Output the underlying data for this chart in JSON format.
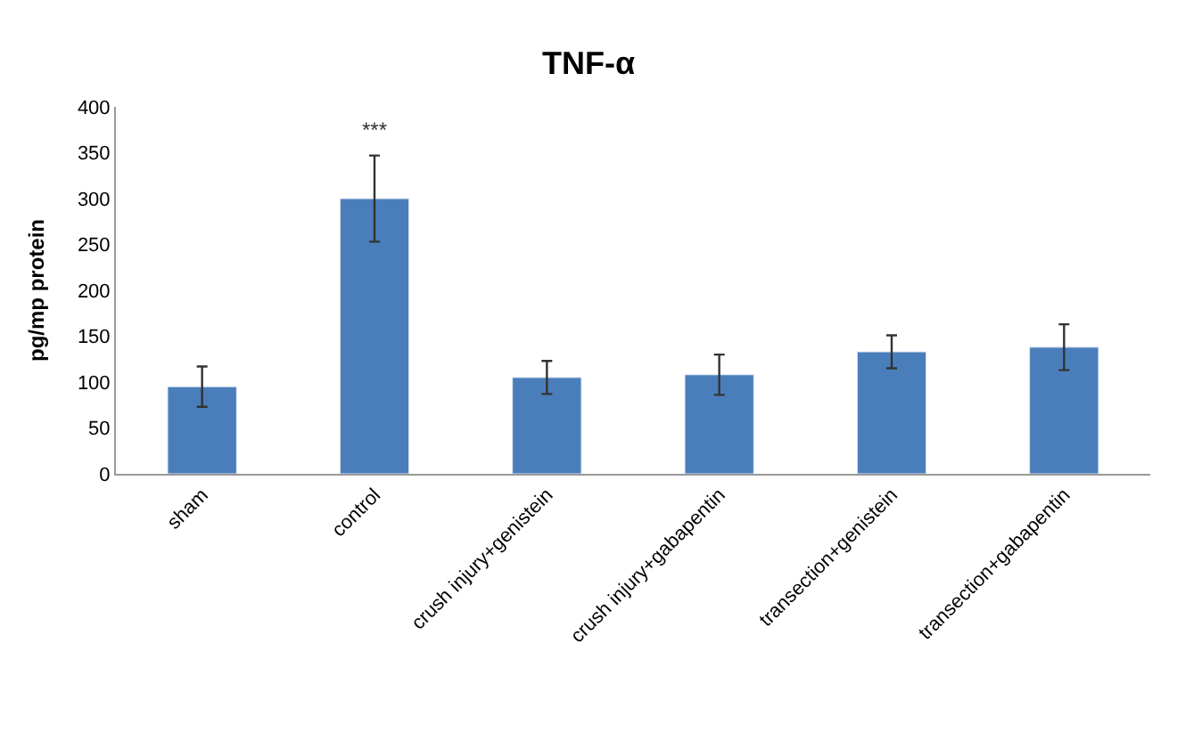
{
  "chart_data": {
    "type": "bar",
    "title": "TNF-α",
    "ylabel": "pg/mp protein",
    "categories": [
      "sham",
      "control",
      "crush injury+genistein",
      "crush injury+gabapentin",
      "transection+genistein",
      "transection+gabapentin"
    ],
    "values": [
      95,
      300,
      105,
      108,
      133,
      138
    ],
    "errors": [
      22,
      47,
      18,
      22,
      18,
      25
    ],
    "color": "#4a7ebb",
    "ylim": [
      0,
      400
    ],
    "yticks": [
      0,
      50,
      100,
      150,
      200,
      250,
      300,
      350,
      400
    ],
    "annotations": [
      "***"
    ]
  }
}
